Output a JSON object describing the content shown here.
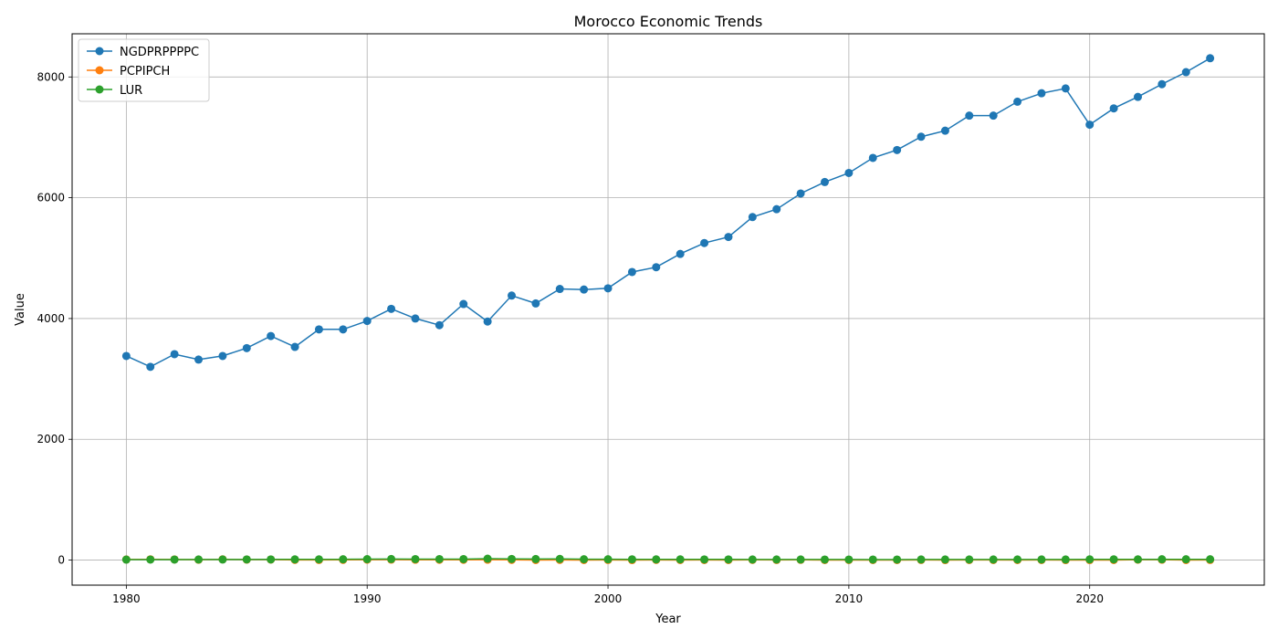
{
  "chart_data": {
    "type": "line",
    "title": "Morocco Economic Trends",
    "xlabel": "Year",
    "ylabel": "Value",
    "xlim": [
      1977.75,
      2027.25
    ],
    "ylim": [
      -415,
      8715
    ],
    "xticks": [
      1980,
      1990,
      2000,
      2010,
      2020
    ],
    "yticks": [
      0,
      2000,
      4000,
      6000,
      8000
    ],
    "grid": true,
    "legend_position": "upper left",
    "x": [
      1980,
      1981,
      1982,
      1983,
      1984,
      1985,
      1986,
      1987,
      1988,
      1989,
      1990,
      1991,
      1992,
      1993,
      1994,
      1995,
      1996,
      1997,
      1998,
      1999,
      2000,
      2001,
      2002,
      2003,
      2004,
      2005,
      2006,
      2007,
      2008,
      2009,
      2010,
      2011,
      2012,
      2013,
      2014,
      2015,
      2016,
      2017,
      2018,
      2019,
      2020,
      2021,
      2022,
      2023,
      2024,
      2025
    ],
    "series": [
      {
        "name": "NGDPRPPPPC",
        "color": "#1f77b4",
        "values": [
          3380,
          3200,
          3410,
          3320,
          3380,
          3510,
          3710,
          3530,
          3820,
          3820,
          3960,
          4160,
          4000,
          3890,
          4240,
          3950,
          4380,
          4250,
          4490,
          4480,
          4500,
          4770,
          4850,
          5070,
          5250,
          5350,
          5680,
          5810,
          6070,
          6260,
          6410,
          6660,
          6790,
          7010,
          7110,
          7360,
          7360,
          7590,
          7730,
          7810,
          7210,
          7480,
          7670,
          7880,
          8080,
          8310
        ]
      },
      {
        "name": "PCPIPCH",
        "color": "#ff7f0e",
        "values": [
          9.4,
          12.5,
          10.5,
          6.2,
          12.4,
          7.7,
          8.7,
          2.7,
          2.4,
          3.1,
          6.9,
          8.0,
          5.7,
          5.2,
          5.1,
          6.1,
          3.0,
          1.0,
          2.7,
          0.7,
          1.9,
          0.6,
          2.8,
          1.2,
          1.5,
          1.0,
          3.3,
          2.0,
          3.9,
          1.0,
          1.0,
          0.9,
          1.3,
          1.9,
          0.4,
          1.6,
          1.6,
          0.8,
          1.6,
          0.2,
          0.6,
          1.4,
          6.6,
          6.1,
          0.9,
          2.0
        ]
      },
      {
        "name": "LUR",
        "color": "#2ca02c",
        "values": [
          8.0,
          8.5,
          9.0,
          9.5,
          10.0,
          10.5,
          11.0,
          11.5,
          12.0,
          13.0,
          15.4,
          17.3,
          16.0,
          15.9,
          16.0,
          22.9,
          18.1,
          16.9,
          19.1,
          13.9,
          13.6,
          12.5,
          11.6,
          11.9,
          10.8,
          11.0,
          9.7,
          9.8,
          9.6,
          9.1,
          9.1,
          8.9,
          9.0,
          9.2,
          9.9,
          9.7,
          9.9,
          10.2,
          9.5,
          9.2,
          11.9,
          12.3,
          11.8,
          13.0,
          13.3,
          13.1
        ]
      }
    ]
  }
}
